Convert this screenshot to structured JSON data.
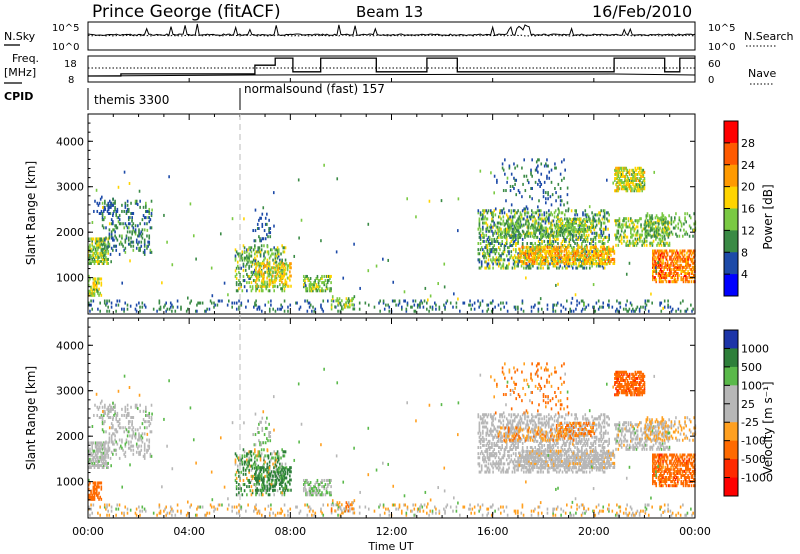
{
  "header": {
    "title": "Prince George (fitACF)",
    "beam": "Beam 13",
    "date": "16/Feb/2010"
  },
  "top_panels": {
    "nsky_label": "N.Sky",
    "nsearch_label": "N.Search",
    "freq_label": "Freq.",
    "freq_unit": "[MHz]",
    "nave_label": "Nave",
    "cpid_label": "CPID",
    "nsky_ticks": [
      "10^5",
      "10^0"
    ],
    "nsearch_ticks": [
      "10^5",
      "10^0"
    ],
    "freq_ticks": [
      "18",
      "8"
    ],
    "nave_ticks": [
      "60",
      "0"
    ],
    "cpid_segments": [
      {
        "label": "themis 3300",
        "start_hour": 0
      },
      {
        "label": "normalsound (fast) 157",
        "start_hour": 6
      }
    ],
    "nave_steps": [
      {
        "from": 0,
        "to": 1.3,
        "value": 12
      },
      {
        "from": 1.3,
        "to": 6.6,
        "value": 17
      },
      {
        "from": 6.6,
        "to": 7.4,
        "value": 38
      },
      {
        "from": 7.4,
        "to": 8.1,
        "value": 55
      },
      {
        "from": 8.1,
        "to": 9.2,
        "value": 22
      },
      {
        "from": 9.2,
        "to": 11.4,
        "value": 55
      },
      {
        "from": 11.4,
        "to": 13.4,
        "value": 22
      },
      {
        "from": 13.4,
        "to": 14.6,
        "value": 55
      },
      {
        "from": 14.6,
        "to": 20.8,
        "value": 22
      },
      {
        "from": 20.8,
        "to": 22.8,
        "value": 55
      },
      {
        "from": 22.8,
        "to": 23.4,
        "value": 22
      },
      {
        "from": 23.4,
        "to": 24,
        "value": 55
      }
    ]
  },
  "chart_data": [
    {
      "type": "heatmap",
      "name": "power",
      "ylabel": "Slant Range [km]",
      "yticks": [
        "1000",
        "2000",
        "3000",
        "4000"
      ],
      "ylim": [
        200,
        4600
      ],
      "xlim": [
        0,
        24
      ],
      "colorbar": {
        "label": "Power [dB]",
        "ticks": [
          "28",
          "24",
          "20",
          "16",
          "12",
          "8",
          "4"
        ],
        "colors": [
          "#ff0000",
          "#ff5a00",
          "#ff9a00",
          "#ffd400",
          "#7ac943",
          "#3a8a45",
          "#1d4aa8",
          "#0000ff"
        ]
      }
    },
    {
      "type": "heatmap",
      "name": "velocity",
      "ylabel": "Slant Range [km]",
      "yticks": [
        "1000",
        "2000",
        "3000",
        "4000"
      ],
      "ylim": [
        200,
        4600
      ],
      "xlim": [
        0,
        24
      ],
      "xlabel": "Time UT",
      "xticks": [
        "00:00",
        "04:00",
        "08:00",
        "12:00",
        "16:00",
        "20:00",
        "00:00"
      ],
      "colorbar": {
        "label": "Velocity [m s⁻¹]",
        "ticks": [
          "1000",
          "500",
          "100",
          "25",
          "-25",
          "-100",
          "-500",
          "-1000"
        ],
        "colors": [
          "#1d35a8",
          "#2e7f3a",
          "#5ab94a",
          "#b7b7b7",
          "#b7b7b7",
          "#ffa020",
          "#ff6a00",
          "#ff2a00",
          "#ff0000"
        ]
      }
    }
  ]
}
